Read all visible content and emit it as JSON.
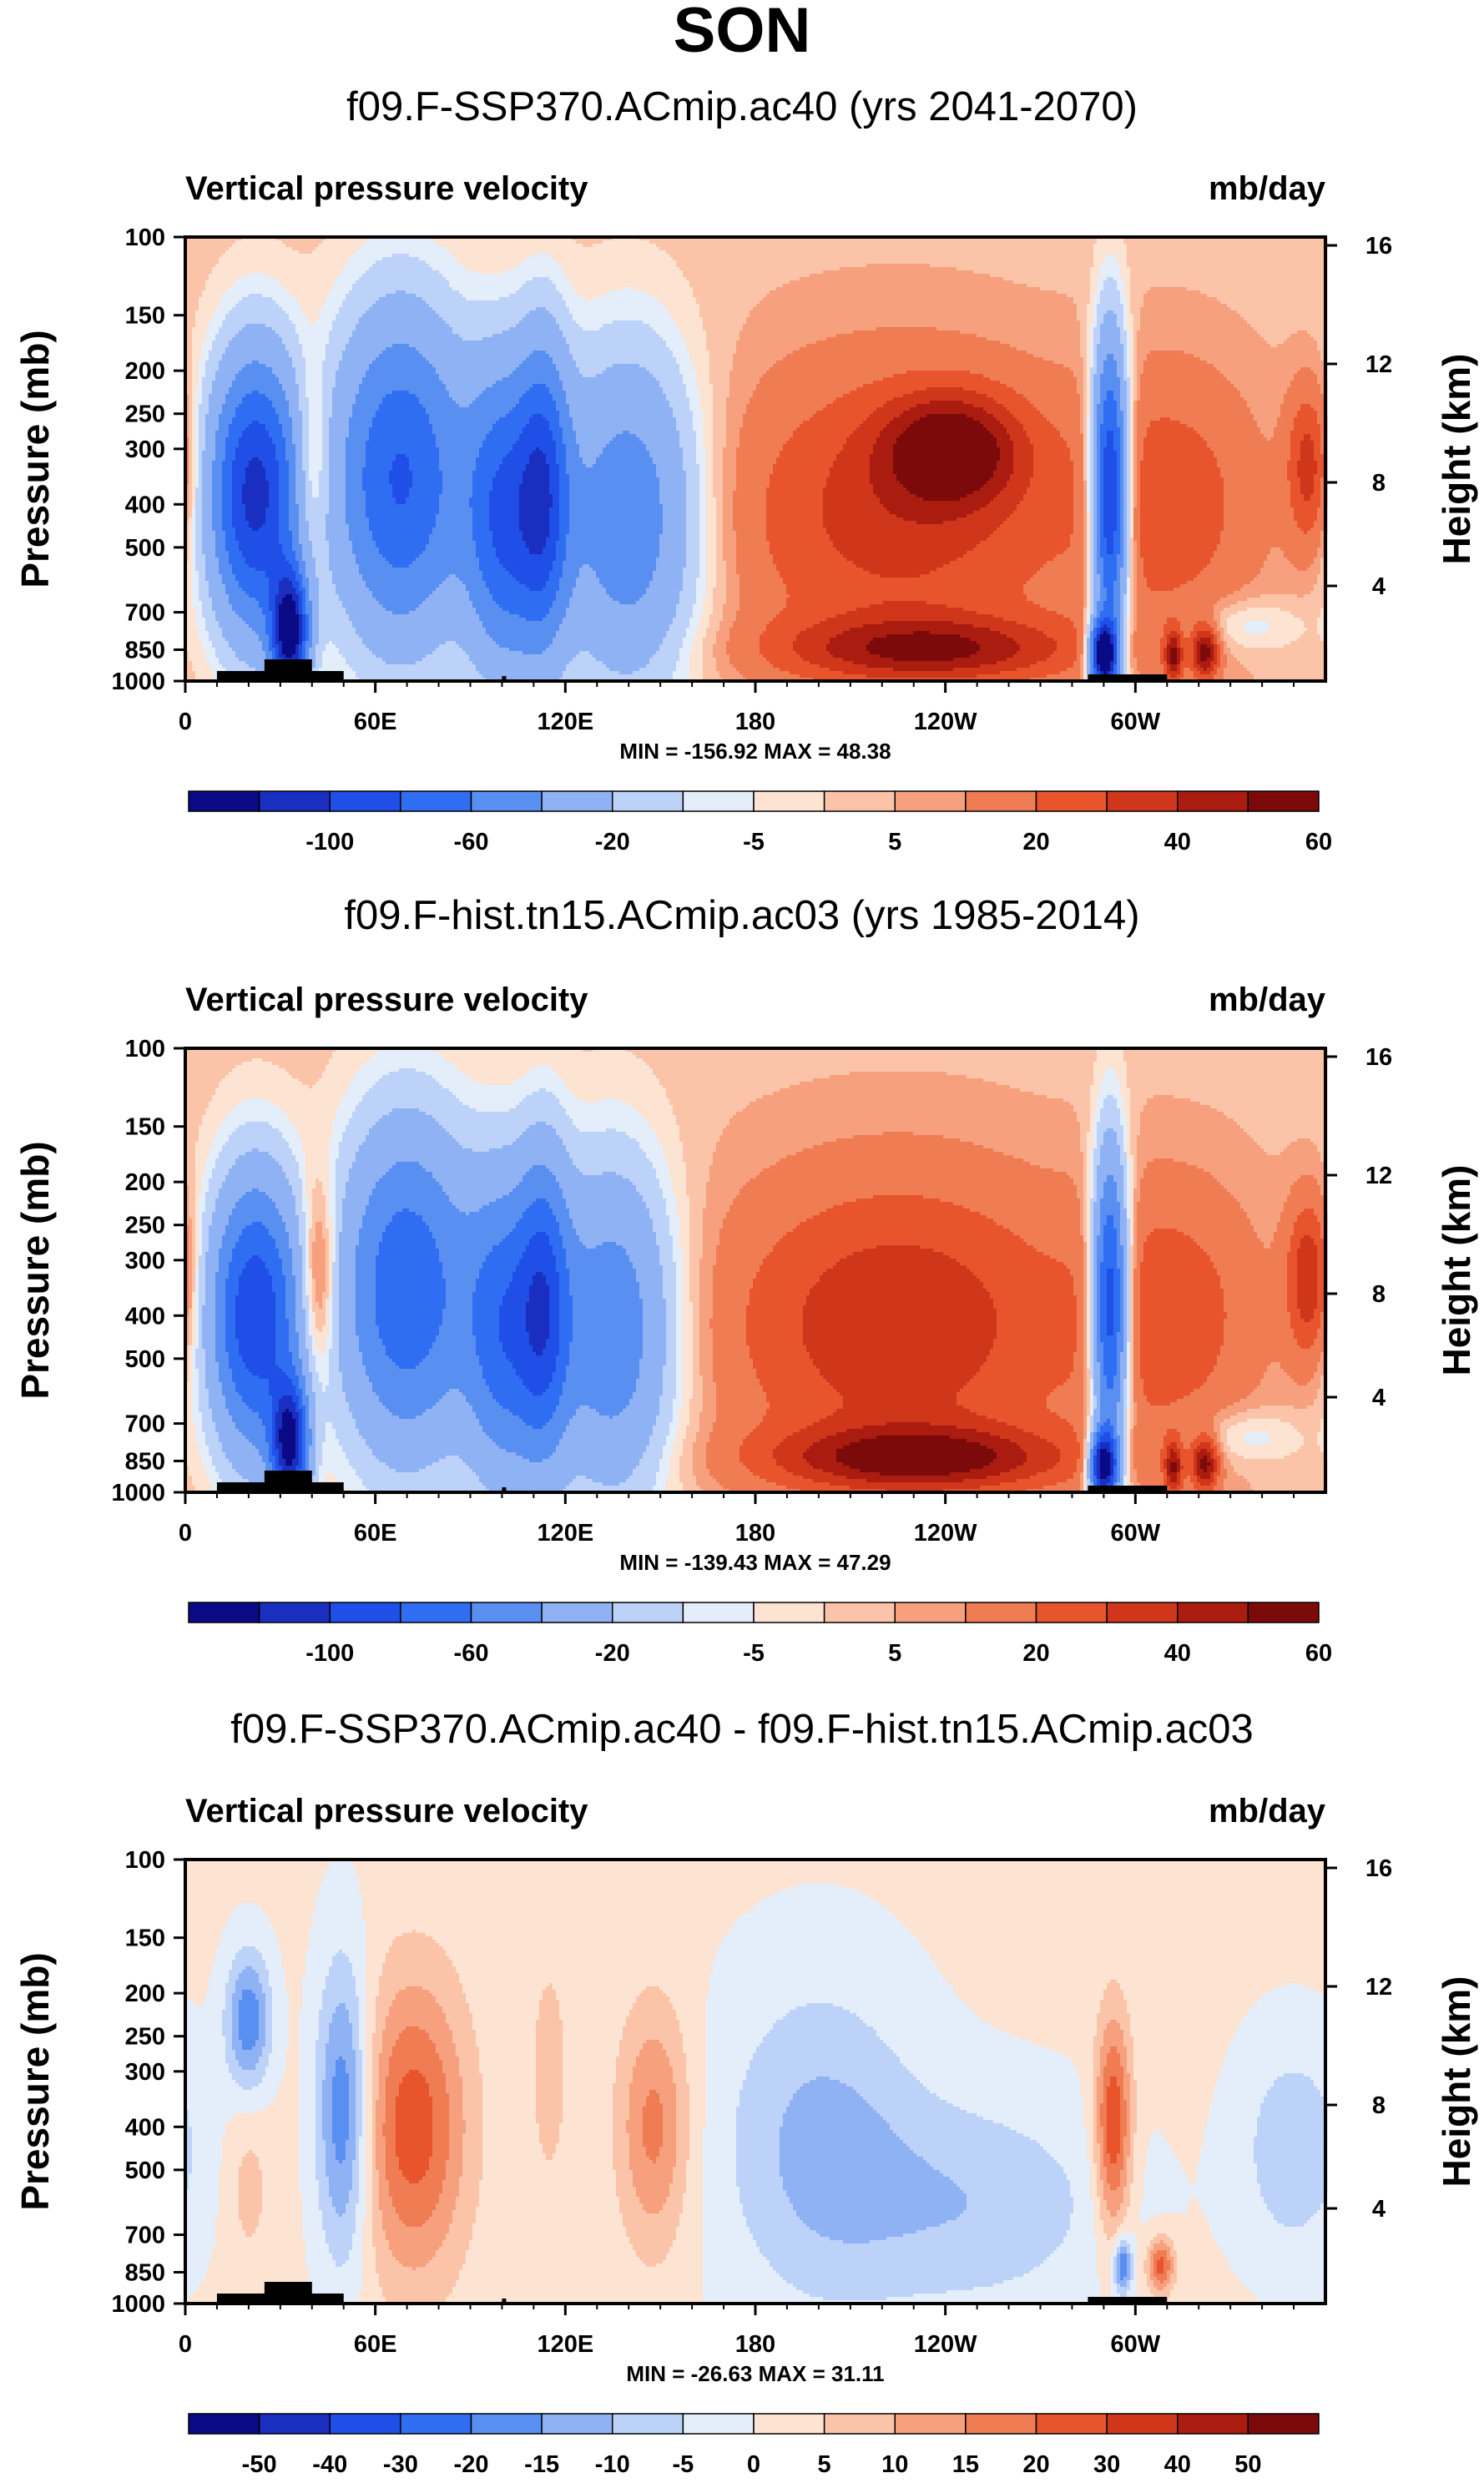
{
  "figure": {
    "title": "SON"
  },
  "colors": {
    "palette": [
      "#0a0a86",
      "#1a2ec0",
      "#1f4fe6",
      "#2f6ef2",
      "#5a8ff2",
      "#8fb2f5",
      "#bcd2f8",
      "#e4eefb",
      "#fde3d2",
      "#fbc4a8",
      "#f6a07d",
      "#f07c54",
      "#e8552c",
      "#d0361a",
      "#aa1c10",
      "#7d0a0a"
    ]
  },
  "chart_data": [
    {
      "type": "heatmap",
      "title": "f09.F-SSP370.ACmip.ac40 (yrs 2041-2070)",
      "left_label": "Vertical pressure velocity",
      "right_label": "mb/day",
      "ylabel": "Pressure (mb)",
      "ylabel_right": "Height (km)",
      "x_ticks": [
        "0",
        "60E",
        "120E",
        "180",
        "120W",
        "60W"
      ],
      "x_tick_values": [
        0,
        60,
        120,
        180,
        240,
        300
      ],
      "xlim": [
        0,
        360
      ],
      "y_ticks": [
        "100",
        "150",
        "200",
        "250",
        "300",
        "400",
        "500",
        "700",
        "850",
        "1000"
      ],
      "y_tick_values": [
        100,
        150,
        200,
        250,
        300,
        400,
        500,
        700,
        850,
        1000
      ],
      "ylim": [
        1000,
        100
      ],
      "y_right_ticks": [
        "16",
        "12",
        "8",
        "4"
      ],
      "y_right_tick_values": [
        16,
        12,
        8,
        4
      ],
      "stats": "MIN = -156.92  MAX =  48.38",
      "levels_labels": [
        "-100",
        "-60",
        "-20",
        "-5",
        "5",
        "20",
        "40",
        "60"
      ],
      "colorbar_bins": 16,
      "min": -156.92,
      "max": 48.38,
      "features": [
        {
          "lon": 22,
          "p": 380,
          "amp": -110,
          "wl": 10,
          "wp": 0.5
        },
        {
          "lon": 33,
          "p": 780,
          "amp": -130,
          "wl": 4,
          "wp": 0.22
        },
        {
          "lon": 40,
          "p": 330,
          "amp": 25,
          "wl": 4,
          "wp": 0.35
        },
        {
          "lon": 68,
          "p": 350,
          "amp": -85,
          "wl": 15,
          "wp": 0.6
        },
        {
          "lon": 100,
          "p": 430,
          "amp": -75,
          "wl": 8,
          "wp": 0.55
        },
        {
          "lon": 113,
          "p": 380,
          "amp": -80,
          "wl": 6,
          "wp": 0.55
        },
        {
          "lon": 140,
          "p": 430,
          "amp": -60,
          "wl": 16,
          "wp": 0.6
        },
        {
          "lon": 225,
          "p": 420,
          "amp": 32,
          "wl": 40,
          "wp": 0.55
        },
        {
          "lon": 235,
          "p": 850,
          "amp": 40,
          "wl": 33,
          "wp": 0.12
        },
        {
          "lon": 242,
          "p": 300,
          "amp": 44,
          "wl": 15,
          "wp": 0.2
        },
        {
          "lon": 292,
          "p": 380,
          "amp": -120,
          "wl": 4,
          "wp": 0.55
        },
        {
          "lon": 290,
          "p": 870,
          "amp": -150,
          "wl": 3,
          "wp": 0.12
        },
        {
          "lon": 312,
          "p": 400,
          "amp": 22,
          "wl": 20,
          "wp": 0.5
        },
        {
          "lon": 312,
          "p": 880,
          "amp": 42,
          "wl": 2,
          "wp": 0.1
        },
        {
          "lon": 322,
          "p": 860,
          "amp": 48,
          "wl": 3,
          "wp": 0.1
        },
        {
          "lon": 355,
          "p": 330,
          "amp": 32,
          "wl": 5,
          "wp": 0.3
        },
        {
          "lon": 335,
          "p": 750,
          "amp": -14,
          "wl": 12,
          "wp": 0.1
        }
      ]
    },
    {
      "type": "heatmap",
      "title": "f09.F-hist.tn15.ACmip.ac03 (yrs 1985-2014)",
      "left_label": "Vertical pressure velocity",
      "right_label": "mb/day",
      "ylabel": "Pressure (mb)",
      "ylabel_right": "Height (km)",
      "x_ticks": [
        "0",
        "60E",
        "120E",
        "180",
        "120W",
        "60W"
      ],
      "x_tick_values": [
        0,
        60,
        120,
        180,
        240,
        300
      ],
      "xlim": [
        0,
        360
      ],
      "y_ticks": [
        "100",
        "150",
        "200",
        "250",
        "300",
        "400",
        "500",
        "700",
        "850",
        "1000"
      ],
      "y_tick_values": [
        100,
        150,
        200,
        250,
        300,
        400,
        500,
        700,
        850,
        1000
      ],
      "ylim": [
        1000,
        100
      ],
      "y_right_ticks": [
        "16",
        "12",
        "8",
        "4"
      ],
      "y_right_tick_values": [
        16,
        12,
        8,
        4
      ],
      "stats": "MIN = -139.43  MAX =  47.29",
      "levels_labels": [
        "-100",
        "-60",
        "-20",
        "-5",
        "5",
        "20",
        "40",
        "60"
      ],
      "colorbar_bins": 16,
      "min": -139.43,
      "max": 47.29,
      "features": [
        {
          "lon": 22,
          "p": 400,
          "amp": -100,
          "wl": 10,
          "wp": 0.5
        },
        {
          "lon": 33,
          "p": 780,
          "amp": -120,
          "wl": 4,
          "wp": 0.22
        },
        {
          "lon": 42,
          "p": 330,
          "amp": 32,
          "wl": 4,
          "wp": 0.35
        },
        {
          "lon": 70,
          "p": 350,
          "amp": -80,
          "wl": 15,
          "wp": 0.6
        },
        {
          "lon": 100,
          "p": 430,
          "amp": -65,
          "wl": 8,
          "wp": 0.55
        },
        {
          "lon": 113,
          "p": 380,
          "amp": -75,
          "wl": 6,
          "wp": 0.55
        },
        {
          "lon": 135,
          "p": 430,
          "amp": -60,
          "wl": 14,
          "wp": 0.6
        },
        {
          "lon": 225,
          "p": 420,
          "amp": 36,
          "wl": 40,
          "wp": 0.55
        },
        {
          "lon": 232,
          "p": 840,
          "amp": 45,
          "wl": 33,
          "wp": 0.12
        },
        {
          "lon": 292,
          "p": 380,
          "amp": -110,
          "wl": 4,
          "wp": 0.55
        },
        {
          "lon": 290,
          "p": 870,
          "amp": -135,
          "wl": 3,
          "wp": 0.12
        },
        {
          "lon": 312,
          "p": 400,
          "amp": 22,
          "wl": 20,
          "wp": 0.5
        },
        {
          "lon": 312,
          "p": 880,
          "amp": 40,
          "wl": 2,
          "wp": 0.1
        },
        {
          "lon": 322,
          "p": 860,
          "amp": 46,
          "wl": 3,
          "wp": 0.1
        },
        {
          "lon": 355,
          "p": 330,
          "amp": 36,
          "wl": 5,
          "wp": 0.3
        },
        {
          "lon": 335,
          "p": 750,
          "amp": -14,
          "wl": 12,
          "wp": 0.1
        }
      ]
    },
    {
      "type": "heatmap",
      "title": "f09.F-SSP370.ACmip.ac40 - f09.F-hist.tn15.ACmip.ac03",
      "left_label": "Vertical pressure velocity",
      "right_label": "mb/day",
      "ylabel": "Pressure (mb)",
      "ylabel_right": "Height (km)",
      "x_ticks": [
        "0",
        "60E",
        "120E",
        "180",
        "120W",
        "60W"
      ],
      "x_tick_values": [
        0,
        60,
        120,
        180,
        240,
        300
      ],
      "xlim": [
        0,
        360
      ],
      "y_ticks": [
        "100",
        "150",
        "200",
        "250",
        "300",
        "400",
        "500",
        "700",
        "850",
        "1000"
      ],
      "y_tick_values": [
        100,
        150,
        200,
        250,
        300,
        400,
        500,
        700,
        850,
        1000
      ],
      "ylim": [
        1000,
        100
      ],
      "y_right_ticks": [
        "16",
        "12",
        "8",
        "4"
      ],
      "y_right_tick_values": [
        16,
        12,
        8,
        4
      ],
      "stats": "MIN = -26.63  MAX = 31.11",
      "levels_labels": [
        "-50",
        "-40",
        "-30",
        "-20",
        "-15",
        "-10",
        "-5",
        "0",
        "5",
        "10",
        "15",
        "20",
        "30",
        "40",
        "50"
      ],
      "colorbar_bins": 16,
      "min": -26.63,
      "max": 31.11,
      "features": [
        {
          "lon": 20,
          "p": 230,
          "amp": -20,
          "wl": 5,
          "wp": 0.25
        },
        {
          "lon": 20,
          "p": 550,
          "amp": 6,
          "wl": 5,
          "wp": 0.3
        },
        {
          "lon": 50,
          "p": 370,
          "amp": -22,
          "wl": 6,
          "wp": 0.55
        },
        {
          "lon": 72,
          "p": 400,
          "amp": 22,
          "wl": 12,
          "wp": 0.55
        },
        {
          "lon": 115,
          "p": 300,
          "amp": 6,
          "wl": 5,
          "wp": 0.5
        },
        {
          "lon": 148,
          "p": 400,
          "amp": 16,
          "wl": 8,
          "wp": 0.45
        },
        {
          "lon": 200,
          "p": 430,
          "amp": -12,
          "wl": 22,
          "wp": 0.6
        },
        {
          "lon": 250,
          "p": 600,
          "amp": -10,
          "wl": 30,
          "wp": 0.4
        },
        {
          "lon": 293,
          "p": 400,
          "amp": 25,
          "wl": 4,
          "wp": 0.4
        },
        {
          "lon": 296,
          "p": 820,
          "amp": -22,
          "wl": 2,
          "wp": 0.1
        },
        {
          "lon": 308,
          "p": 820,
          "amp": 22,
          "wl": 3,
          "wp": 0.1
        },
        {
          "lon": 350,
          "p": 450,
          "amp": -10,
          "wl": 12,
          "wp": 0.4
        }
      ]
    }
  ]
}
